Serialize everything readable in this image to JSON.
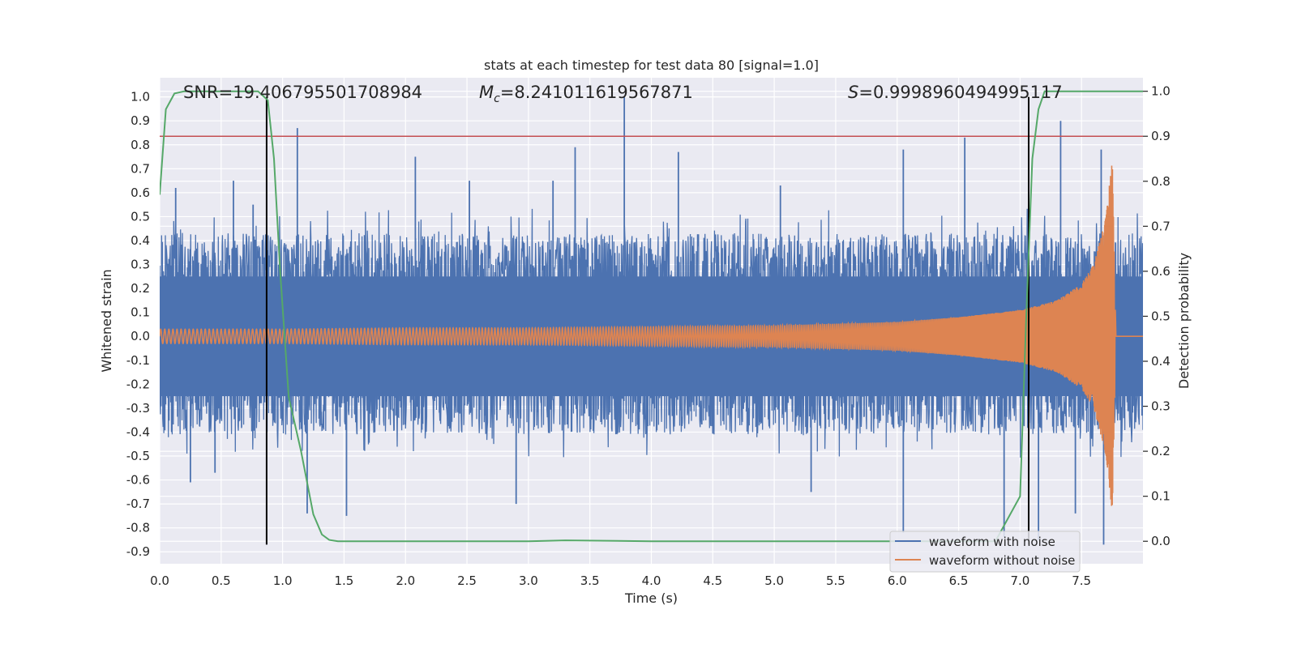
{
  "chart_data": {
    "type": "line",
    "title": "stats at each timestep for test data 80 [signal=1.0]",
    "xlabel": "Time (s)",
    "ylabel": "Whitened strain",
    "ylabel_right": "Detection probability",
    "xlim": [
      0.0,
      8.0
    ],
    "ylim": [
      -0.95,
      1.08
    ],
    "ylim_right": [
      -0.05,
      1.03
    ],
    "xticks": [
      0.0,
      0.5,
      1.0,
      1.5,
      2.0,
      2.5,
      3.0,
      3.5,
      4.0,
      4.5,
      5.0,
      5.5,
      6.0,
      6.5,
      7.0,
      7.5
    ],
    "xtick_labels": [
      "0.0",
      "0.5",
      "1.0",
      "1.5",
      "2.0",
      "2.5",
      "3.0",
      "3.5",
      "4.0",
      "4.5",
      "5.0",
      "5.5",
      "6.0",
      "6.5",
      "7.0",
      "7.5"
    ],
    "yticks": [
      1.0,
      0.9,
      0.8,
      0.7,
      0.6,
      0.5,
      0.4,
      0.3,
      0.2,
      0.1,
      0.0,
      -0.1,
      -0.2,
      -0.3,
      -0.4,
      -0.5,
      -0.6,
      -0.7,
      -0.8,
      -0.9
    ],
    "ytick_labels": [
      "1.0",
      "0.9",
      "0.8",
      "0.7",
      "0.6",
      "0.5",
      "0.4",
      "0.3",
      "0.2",
      "0.1",
      "0.0",
      "-0.1",
      "-0.2",
      "-0.3",
      "-0.4",
      "-0.5",
      "-0.6",
      "-0.7",
      "-0.8",
      "-0.9"
    ],
    "yticks_right": [
      1.0,
      0.9,
      0.8,
      0.7,
      0.6,
      0.5,
      0.4,
      0.3,
      0.2,
      0.1,
      0.0
    ],
    "ytick_labels_right": [
      "1.0",
      "0.9",
      "0.8",
      "0.7",
      "0.6",
      "0.5",
      "0.4",
      "0.3",
      "0.2",
      "0.1",
      "0.0"
    ],
    "grid": true,
    "annotations": {
      "snr": "SNR=19.406795501708984",
      "mc_symbol": "M",
      "mc_subscript": "c",
      "mc_value": "=8.241011619567871",
      "s_symbol": "S",
      "s_value": "=0.9998960494995117"
    },
    "threshold_right": 0.9,
    "vertical_lines_x": [
      0.87,
      7.07
    ],
    "vertical_line_yrange": [
      -0.87,
      1.0
    ],
    "series": [
      {
        "name": "waveform with noise",
        "color": "#4c72b0",
        "description": "noisy whitened strain, envelope approx +-0.4 with spikes",
        "envelope": {
          "x": [
            0.0,
            8.0
          ],
          "upper": [
            0.43,
            0.43
          ],
          "lower": [
            -0.41,
            -0.41
          ]
        },
        "spikes": [
          {
            "x": 0.13,
            "y": 0.62
          },
          {
            "x": 0.25,
            "y": -0.61
          },
          {
            "x": 0.45,
            "y": -0.57
          },
          {
            "x": 0.6,
            "y": 0.65
          },
          {
            "x": 0.76,
            "y": 0.55
          },
          {
            "x": 1.12,
            "y": 0.87
          },
          {
            "x": 1.2,
            "y": -0.74
          },
          {
            "x": 1.52,
            "y": -0.75
          },
          {
            "x": 2.08,
            "y": 0.75
          },
          {
            "x": 2.52,
            "y": 0.65
          },
          {
            "x": 3.2,
            "y": 0.65
          },
          {
            "x": 2.9,
            "y": -0.7
          },
          {
            "x": 3.38,
            "y": 0.79
          },
          {
            "x": 3.78,
            "y": 1.0
          },
          {
            "x": 4.22,
            "y": 0.77
          },
          {
            "x": 5.05,
            "y": 0.63
          },
          {
            "x": 5.3,
            "y": -0.65
          },
          {
            "x": 6.05,
            "y": 0.78
          },
          {
            "x": 6.05,
            "y": -0.82
          },
          {
            "x": 6.55,
            "y": 0.83
          },
          {
            "x": 6.87,
            "y": -0.84
          },
          {
            "x": 7.15,
            "y": -0.85
          },
          {
            "x": 7.33,
            "y": 0.9
          },
          {
            "x": 7.66,
            "y": 0.78
          },
          {
            "x": 7.68,
            "y": -0.87
          },
          {
            "x": 7.45,
            "y": -0.74
          }
        ]
      },
      {
        "name": "waveform without noise",
        "color": "#dd8452",
        "description": "chirp signal, amplitude grows toward merger",
        "x": [
          0.0,
          1.0,
          2.0,
          3.0,
          4.0,
          5.0,
          6.0,
          6.5,
          7.0,
          7.3,
          7.5,
          7.6,
          7.7,
          7.75,
          7.78,
          8.0
        ],
        "amplitude": [
          0.03,
          0.03,
          0.035,
          0.035,
          0.04,
          0.045,
          0.06,
          0.08,
          0.11,
          0.15,
          0.22,
          0.3,
          0.5,
          0.75,
          0.0,
          0.0
        ],
        "frequency_hz": [
          30,
          32,
          36,
          40,
          45,
          55,
          70,
          85,
          110,
          140,
          190,
          230,
          280,
          320,
          0,
          0
        ]
      },
      {
        "name": "detection probability",
        "color": "#55a868",
        "axis": "right",
        "x": [
          0.0,
          0.05,
          0.12,
          0.2,
          0.4,
          0.6,
          0.8,
          0.88,
          0.93,
          0.98,
          1.05,
          1.15,
          1.25,
          1.32,
          1.38,
          1.45,
          2.0,
          3.0,
          3.3,
          4.0,
          5.0,
          6.0,
          6.8,
          7.0,
          7.05,
          7.1,
          7.15,
          7.2,
          7.5,
          8.0
        ],
        "values": [
          0.77,
          0.96,
          0.995,
          1.0,
          1.0,
          1.0,
          1.0,
          0.98,
          0.85,
          0.6,
          0.32,
          0.2,
          0.06,
          0.015,
          0.003,
          0.0,
          0.0,
          0.0,
          0.002,
          0.0,
          0.0,
          0.0,
          0.0,
          0.1,
          0.5,
          0.85,
          0.96,
          1.0,
          1.0,
          1.0
        ]
      }
    ],
    "legend": {
      "placement": "lower-right",
      "entries": [
        "waveform with noise",
        "waveform without noise"
      ]
    },
    "threshold_color": "#c44e52",
    "vline_color": "#000000",
    "plot_background": "#eaeaf2",
    "grid_color": "#ffffff"
  }
}
